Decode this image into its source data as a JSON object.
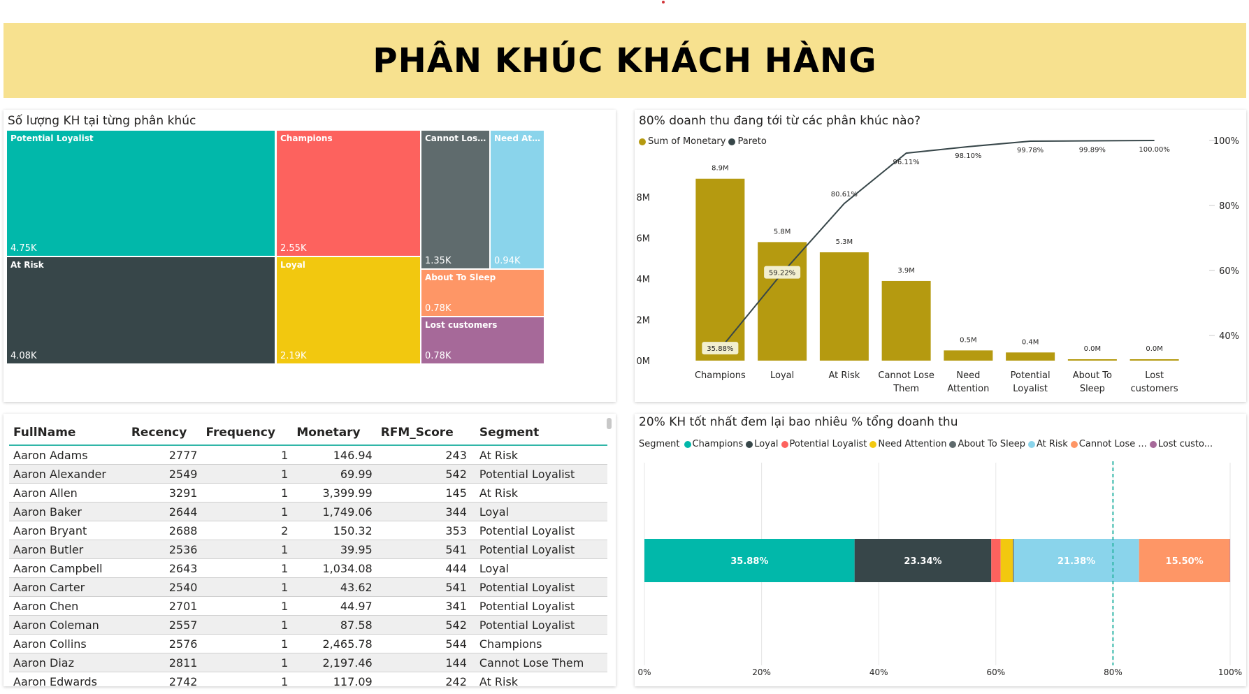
{
  "page_title": "PHÂN KHÚC KHÁCH HÀNG",
  "colors": {
    "teal": "#01b8aa",
    "red": "#fd625e",
    "gray": "#5f6b6d",
    "lightblue": "#8ad4eb",
    "dark": "#374649",
    "yellow": "#f2c80f",
    "orange": "#fe9666",
    "purple": "#a66999",
    "gold": "#b59a10",
    "banner": "#f7e18f"
  },
  "treemap": {
    "title": "Số lượng KH tại từng phân khúc",
    "cells": [
      {
        "label": "Potential Loyalist",
        "value": "4.75K",
        "color": "#01b8aa"
      },
      {
        "label": "At Risk",
        "value": "4.08K",
        "color": "#374649"
      },
      {
        "label": "Champions",
        "value": "2.55K",
        "color": "#fd625e"
      },
      {
        "label": "Loyal",
        "value": "2.19K",
        "color": "#f2c80f"
      },
      {
        "label": "Cannot Lose Th...",
        "value": "1.35K",
        "color": "#5f6b6d"
      },
      {
        "label": "Need Att...",
        "value": "0.94K",
        "color": "#8ad4eb"
      },
      {
        "label": "About To Sleep",
        "value": "0.78K",
        "color": "#fe9666"
      },
      {
        "label": "Lost customers",
        "value": "0.78K",
        "color": "#a66999"
      }
    ]
  },
  "table": {
    "columns": [
      "FullName",
      "Recency",
      "Frequency",
      "Monetary",
      "RFM_Score",
      "Segment"
    ],
    "rows": [
      [
        "Aaron Adams",
        "2777",
        "1",
        "146.94",
        "243",
        "At Risk"
      ],
      [
        "Aaron Alexander",
        "2549",
        "1",
        "69.99",
        "542",
        "Potential Loyalist"
      ],
      [
        "Aaron Allen",
        "3291",
        "1",
        "3,399.99",
        "145",
        "At Risk"
      ],
      [
        "Aaron Baker",
        "2644",
        "1",
        "1,749.06",
        "344",
        "Loyal"
      ],
      [
        "Aaron Bryant",
        "2688",
        "2",
        "150.32",
        "353",
        "Potential Loyalist"
      ],
      [
        "Aaron Butler",
        "2536",
        "1",
        "39.95",
        "541",
        "Potential Loyalist"
      ],
      [
        "Aaron Campbell",
        "2643",
        "1",
        "1,034.08",
        "444",
        "Loyal"
      ],
      [
        "Aaron Carter",
        "2540",
        "1",
        "43.62",
        "541",
        "Potential Loyalist"
      ],
      [
        "Aaron Chen",
        "2701",
        "1",
        "44.97",
        "341",
        "Potential Loyalist"
      ],
      [
        "Aaron Coleman",
        "2557",
        "1",
        "87.58",
        "542",
        "Potential Loyalist"
      ],
      [
        "Aaron Collins",
        "2576",
        "1",
        "2,465.78",
        "544",
        "Champions"
      ],
      [
        "Aaron Diaz",
        "2811",
        "1",
        "2,197.46",
        "144",
        "Cannot Lose Them"
      ],
      [
        "Aaron Edwards",
        "2742",
        "1",
        "117.09",
        "242",
        "At Risk"
      ]
    ]
  },
  "pareto": {
    "title": "80% doanh thu đang tới từ các phân khúc nào?",
    "legend": [
      "Sum of Monetary",
      "Pareto"
    ],
    "left_ticks": [
      "0M",
      "2M",
      "4M",
      "6M",
      "8M"
    ],
    "right_ticks": [
      "40%",
      "60%",
      "80%",
      "100%"
    ]
  },
  "stacked": {
    "title": "20% KH tốt nhất đem lại bao nhiêu % tổng doanh thu",
    "legend_title": "Segment",
    "legend": [
      {
        "label": "Champions",
        "color": "#01b8aa"
      },
      {
        "label": "Loyal",
        "color": "#374649"
      },
      {
        "label": "Potential Loyalist",
        "color": "#fd625e"
      },
      {
        "label": "Need Attention",
        "color": "#f2c80f"
      },
      {
        "label": "About To Sleep",
        "color": "#5f6b6d"
      },
      {
        "label": "At Risk",
        "color": "#8ad4eb"
      },
      {
        "label": "Cannot Lose ...",
        "color": "#fe9666"
      },
      {
        "label": "Lost custo...",
        "color": "#a66999"
      }
    ],
    "ticks": [
      "0%",
      "20%",
      "40%",
      "60%",
      "80%",
      "100%"
    ]
  },
  "chart_data": [
    {
      "type": "bar",
      "title": "80% doanh thu đang tới từ các phân khúc nào?",
      "categories": [
        "Champions",
        "Loyal",
        "At Risk",
        "Cannot Lose Them",
        "Need Attention",
        "Potential Loyalist",
        "About To Sleep",
        "Lost customers"
      ],
      "series": [
        {
          "name": "Sum of Monetary",
          "values": [
            8.9,
            5.8,
            5.3,
            3.9,
            0.5,
            0.4,
            0.0,
            0.0
          ],
          "labels": [
            "8.9M",
            "5.8M",
            "5.3M",
            "3.9M",
            "0.5M",
            "0.4M",
            "0.0M",
            "0.0M"
          ],
          "color": "#b59a10"
        },
        {
          "name": "Pareto",
          "type": "line",
          "values": [
            35.88,
            59.22,
            80.61,
            96.11,
            98.1,
            99.78,
            99.89,
            100.0
          ],
          "labels": [
            "35.88%",
            "59.22%",
            "80.61%",
            "96.11%",
            "98.10%",
            "99.78%",
            "99.89%",
            "100.00%"
          ],
          "color": "#374649"
        }
      ],
      "ylim": [
        0,
        9
      ],
      "y2lim": [
        28,
        104
      ]
    },
    {
      "type": "bar",
      "title": "20% KH tốt nhất đem lại bao nhiêu % tổng doanh thu",
      "orientation": "horizontal-stacked",
      "series": [
        {
          "name": "Champions",
          "value": 35.88,
          "label": "35.88%",
          "color": "#01b8aa"
        },
        {
          "name": "Loyal",
          "value": 23.34,
          "label": "23.34%",
          "color": "#374649"
        },
        {
          "name": "Potential Loyalist",
          "value": 1.6,
          "label": "",
          "color": "#fd625e"
        },
        {
          "name": "Need Attention",
          "value": 2.1,
          "label": "",
          "color": "#f2c80f"
        },
        {
          "name": "About To Sleep",
          "value": 0.15,
          "label": "",
          "color": "#5f6b6d"
        },
        {
          "name": "At Risk",
          "value": 21.38,
          "label": "21.38%",
          "color": "#8ad4eb"
        },
        {
          "name": "Cannot Lose Them",
          "value": 15.5,
          "label": "15.50%",
          "color": "#fe9666"
        },
        {
          "name": "Lost customers",
          "value": 0.05,
          "label": "",
          "color": "#a66999"
        }
      ],
      "reference_line": 80,
      "xlim": [
        0,
        100
      ]
    }
  ]
}
